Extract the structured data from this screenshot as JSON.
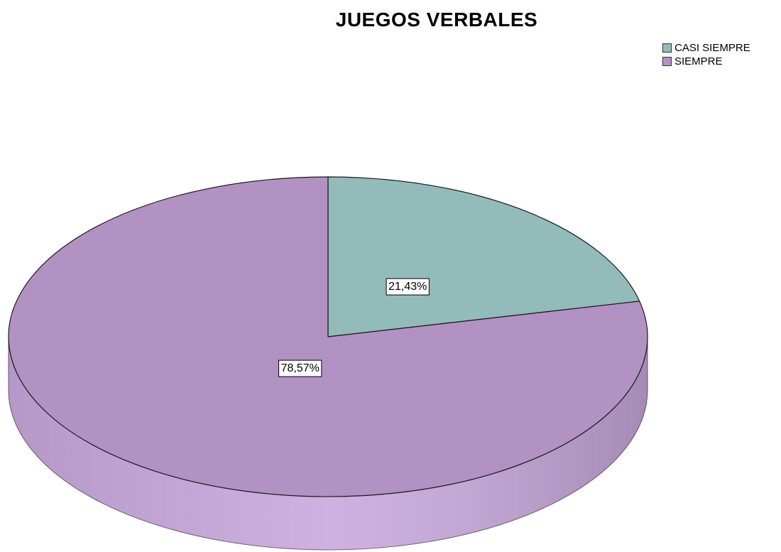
{
  "chart_data": {
    "type": "pie",
    "title": "JUEGOS VERBALES",
    "slices": [
      {
        "name": "CASI SIEMPRE",
        "value": 21.43,
        "label": "21,43%",
        "color": "#93BBBA",
        "side_color": "#7FA3A2"
      },
      {
        "name": "SIEMPRE",
        "value": 78.57,
        "label": "78,57%",
        "color": "#B192C2",
        "side_color": "#C9A9DD"
      }
    ],
    "legend": {
      "position": "top-right",
      "entries": [
        "CASI SIEMPRE",
        "SIEMPRE"
      ]
    },
    "three_d": true,
    "start_angle_deg": 0,
    "direction": "clockwise"
  }
}
